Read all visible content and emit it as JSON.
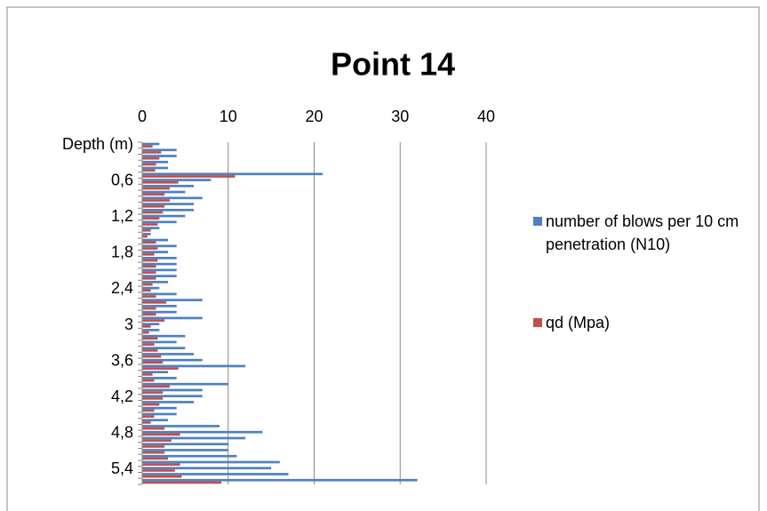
{
  "chart_data": {
    "type": "hbar",
    "title": "Point 14",
    "categories": [
      "Depth (m)",
      null,
      null,
      null,
      null,
      null,
      "0,6",
      null,
      null,
      null,
      null,
      null,
      "1,2",
      null,
      null,
      null,
      null,
      null,
      "1,8",
      null,
      null,
      null,
      null,
      null,
      "2,4",
      null,
      null,
      null,
      null,
      null,
      "3",
      null,
      null,
      null,
      null,
      null,
      "3,6",
      null,
      null,
      null,
      null,
      null,
      "4,2",
      null,
      null,
      null,
      null,
      null,
      "4,8",
      null,
      null,
      null,
      null,
      null,
      "5,4",
      null,
      null
    ],
    "series": [
      {
        "name": "number of blows per 10 cm penetration (N10)",
        "color": "#4f81bd",
        "values": [
          2,
          4,
          4,
          3,
          3,
          21,
          8,
          6,
          5,
          7,
          6,
          6,
          5,
          4,
          2,
          1,
          3,
          4,
          3,
          4,
          4,
          4,
          4,
          3,
          2,
          4,
          7,
          4,
          4,
          7,
          2,
          2,
          5,
          4,
          5,
          6,
          7,
          12,
          3,
          4,
          10,
          7,
          7,
          6,
          4,
          4,
          3,
          9,
          14,
          12,
          10,
          10,
          11,
          16,
          15,
          17,
          32
        ]
      },
      {
        "name": "qd (Mpa)",
        "color": "#c0504d",
        "values": [
          1.2,
          2.2,
          2.0,
          1.6,
          1.5,
          10.8,
          4.2,
          3.2,
          2.6,
          3.2,
          2.6,
          2.4,
          2.0,
          1.8,
          1.0,
          0.6,
          1.6,
          1.8,
          1.4,
          1.8,
          1.6,
          1.6,
          1.6,
          1.2,
          1.0,
          1.6,
          2.8,
          1.6,
          1.6,
          2.6,
          1.0,
          0.8,
          1.8,
          1.4,
          1.8,
          2.2,
          2.4,
          4.2,
          1.2,
          1.4,
          3.2,
          2.4,
          2.4,
          2.0,
          1.4,
          1.4,
          1.0,
          2.6,
          4.4,
          3.4,
          2.6,
          2.6,
          3.0,
          4.4,
          3.8,
          4.6,
          9.2
        ]
      }
    ],
    "xlim": [
      0,
      40
    ],
    "xticks": [
      0,
      10,
      20,
      30,
      40
    ],
    "grid": true,
    "legend": "right"
  }
}
